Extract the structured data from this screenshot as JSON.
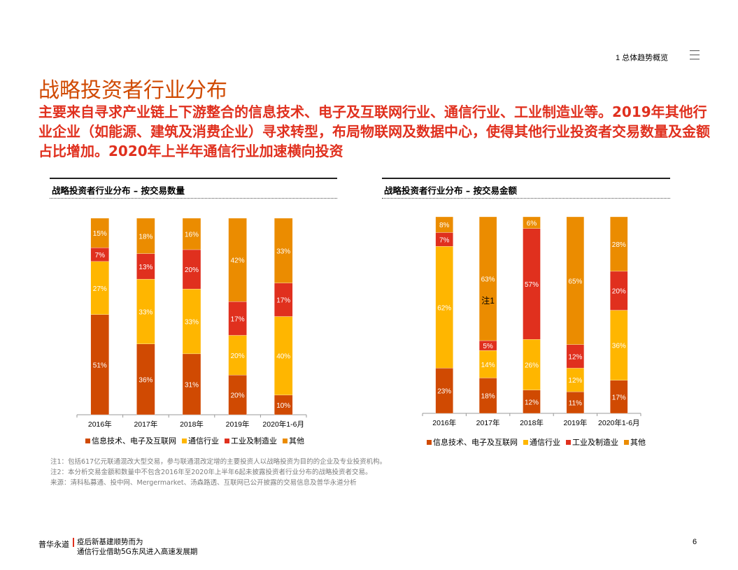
{
  "header": {
    "section": "1 总体趋势概览"
  },
  "title": "战略投资者行业分布",
  "subtitle": "主要来自寻求产业链上下游整合的信息技术、电子及互联网行业、通信行业、工业制造业等。2019年其他行业企业（如能源、建筑及消费企业）寻求转型，布局物联网及数据中心，使得其他行业投资者交易数量及金额占比增加。2020年上半年通信行业加速横向投资",
  "colors": {
    "it": "#D04A02",
    "telecom": "#FFB600",
    "industrial": "#E0301E",
    "other": "#EB8C00"
  },
  "chart_data": [
    {
      "type": "bar",
      "stacked": true,
      "title": "战略投资者行业分布  –  按交易数量",
      "categories": [
        "2016年",
        "2017年",
        "2018年",
        "2019年",
        "2020年1-6月"
      ],
      "series": [
        {
          "name": "信息技术、电子及互联网",
          "values": [
            51,
            36,
            31,
            20,
            10
          ]
        },
        {
          "name": "通信行业",
          "values": [
            27,
            33,
            33,
            20,
            40
          ]
        },
        {
          "name": "工业及制造业",
          "values": [
            7,
            13,
            20,
            17,
            17
          ]
        },
        {
          "name": "其他",
          "values": [
            15,
            18,
            16,
            42,
            33
          ]
        }
      ],
      "unit": "%",
      "legend": "bottom"
    },
    {
      "type": "bar",
      "stacked": true,
      "title": "战略投资者行业分布  –  按交易金额",
      "categories": [
        "2016年",
        "2017年",
        "2018年",
        "2019年",
        "2020年1-6月"
      ],
      "series": [
        {
          "name": "信息技术、电子及互联网",
          "values": [
            23,
            18,
            12,
            11,
            17
          ]
        },
        {
          "name": "通信行业",
          "values": [
            62,
            14,
            26,
            12,
            36
          ]
        },
        {
          "name": "工业及制造业",
          "values": [
            7,
            5,
            57,
            12,
            20
          ]
        },
        {
          "name": "其他",
          "values": [
            8,
            63,
            6,
            65,
            28
          ]
        }
      ],
      "unit": "%",
      "legend": "bottom",
      "annotation": "注1"
    }
  ],
  "notes": [
    "注1：包括617亿元联通混改大型交易，参与联通混改定增的主要投资人以战略投资为目的的企业及专业投资机构。",
    "注2：本分析交易金额和数量中不包含2016年至2020年上半年6起未披露投资者行业分布的战略投资者交易。",
    "来源：清科私募通、投中网、Mergermarket、汤森路透、互联网已公开披露的交易信息及普华永道分析"
  ],
  "footer": {
    "brand": "普华永道",
    "line1": "疫后新基建顺势而为",
    "line2": "通信行业借助5G东风进入高速发展期",
    "page": "6"
  }
}
